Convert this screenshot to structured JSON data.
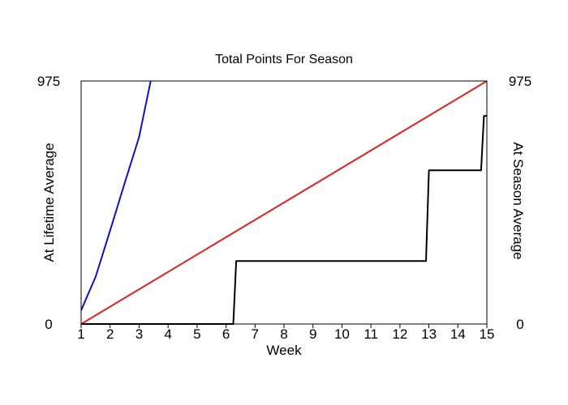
{
  "chart_data": {
    "type": "line",
    "title": "Total Points For Season",
    "xlabel": "Week",
    "ylabel_left": "At Lifetime Average",
    "ylabel_right": "At Season Average",
    "xlim": [
      1,
      15
    ],
    "ylim": [
      0,
      975
    ],
    "x_ticks": [
      "1",
      "2",
      "3",
      "4",
      "5",
      "6",
      "7",
      "8",
      "9",
      "10",
      "11",
      "12",
      "13",
      "14",
      "15"
    ],
    "y_ticks_left": [
      "0",
      "975"
    ],
    "y_ticks_right": [
      "0",
      "975"
    ],
    "grid": false,
    "colors": {
      "lifetime": "#1010c8",
      "season": "#e02020",
      "actual": "#000000",
      "left_label": "#1010c8",
      "right_label": "#e02020"
    },
    "series": [
      {
        "key": "lifetime",
        "points": [
          [
            1,
            55
          ],
          [
            1.5,
            190
          ],
          [
            2,
            375
          ],
          [
            2.5,
            565
          ],
          [
            3,
            750
          ],
          [
            3.4,
            975
          ]
        ]
      },
      {
        "key": "season",
        "points": [
          [
            1,
            0
          ],
          [
            15,
            975
          ]
        ]
      },
      {
        "key": "actual",
        "points": [
          [
            1,
            0
          ],
          [
            6.25,
            0
          ],
          [
            6.35,
            253
          ],
          [
            12.9,
            253
          ],
          [
            13.0,
            617
          ],
          [
            14.8,
            617
          ],
          [
            14.9,
            835
          ],
          [
            15,
            835
          ]
        ]
      }
    ]
  }
}
